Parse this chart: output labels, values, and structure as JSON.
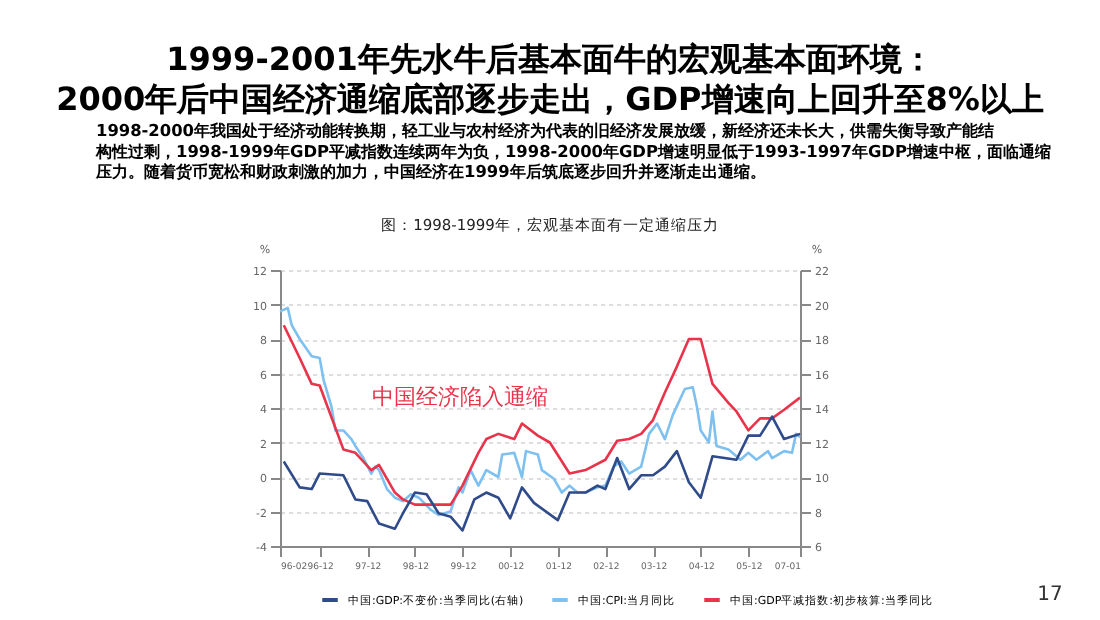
{
  "chart_data": {
    "type": "line",
    "title": "1999-2001年先水牛后基本面牛的宏观基本面环境：\n2000年后中国经济通缩底部逐步走出，GDP增速向上回升至8%以上",
    "subtitle": "1998-2000年我国处于经济动能转换期，轻工业与农村经济为代表的旧经济发展放缓，新经济还未长大，供需失衡导致产能结构性过剩，1998-1999年GDP平减指数连续两年为负，1998-2000年GDP增速明显低于1993-1997年GDP增速中枢，面临通缩压力。随着货币宽松和财政刺激的加力，中国经济在1999年后筑底逐步回升并逐渐走出通缩。",
    "annotations": [
      "图：1998-1999年，宏观基本面有一定通缩压力",
      "中国经济陷入通缩",
      "17"
    ],
    "ylabel": "%",
    "y2label": "%",
    "xlim": [
      "1996-02",
      "2007-01"
    ],
    "xticks": [
      {
        "value": "1996-02",
        "label": "96-02"
      },
      {
        "value": "1996-12",
        "label": "96-12"
      },
      {
        "value": "1997-12",
        "label": "97-12"
      },
      {
        "value": "1998-12",
        "label": "98-12"
      },
      {
        "value": "1999-12",
        "label": "99-12"
      },
      {
        "value": "2000-12",
        "label": "00-12"
      },
      {
        "value": "2001-12",
        "label": "01-12"
      },
      {
        "value": "2002-12",
        "label": "02-12"
      },
      {
        "value": "2003-12",
        "label": "03-12"
      },
      {
        "value": "2004-12",
        "label": "04-12"
      },
      {
        "value": "2005-12",
        "label": "05-12"
      },
      {
        "value": "2007-01",
        "label": "07-01"
      }
    ],
    "ylim": [
      -4,
      12
    ],
    "yticks": [
      -4,
      -2,
      0,
      2,
      4,
      6,
      8,
      10,
      12
    ],
    "y2lim": [
      6,
      22
    ],
    "y2ticks": [
      6,
      8,
      10,
      12,
      14,
      16,
      18,
      20,
      22
    ],
    "grid": "y",
    "legend": "bottom",
    "marker": "none",
    "line_style": "solid",
    "series": [
      {
        "name": "中国:GDP:不变价:当季同比(右轴)",
        "color": "#2f4b8a",
        "axis": "y2",
        "x": [
          "1996-03",
          "1996-07",
          "1996-10",
          "1996-12",
          "1997-06",
          "1997-09",
          "1997-12",
          "1998-03",
          "1998-07",
          "1998-09",
          "1998-12",
          "1999-03",
          "1999-06",
          "1999-09",
          "1999-12",
          "2000-03",
          "2000-06",
          "2000-09",
          "2000-12",
          "2001-03",
          "2001-06",
          "2001-12",
          "2002-03",
          "2002-07",
          "2002-10",
          "2002-12",
          "2003-03",
          "2003-06",
          "2003-09",
          "2003-12",
          "2004-03",
          "2004-06",
          "2004-09",
          "2004-12",
          "2005-03",
          "2005-09",
          "2005-12",
          "2006-03",
          "2006-06",
          "2006-09",
          "2007-01"
        ],
        "values": [
          10.9,
          9.4,
          9.3,
          10.2,
          10.1,
          8.7,
          8.6,
          7.3,
          7.0,
          7.9,
          9.1,
          9.0,
          7.9,
          7.7,
          6.9,
          8.7,
          9.1,
          8.8,
          7.6,
          9.4,
          8.5,
          7.5,
          9.1,
          9.1,
          9.5,
          9.3,
          11.1,
          9.3,
          10.1,
          10.1,
          10.6,
          11.5,
          9.7,
          8.8,
          11.2,
          11.0,
          12.4,
          12.4,
          13.5,
          12.2,
          12.5
        ]
      },
      {
        "name": "中国:CPI:当月同比",
        "color": "#7ec0f0",
        "x": [
          "1996-02",
          "1996-04",
          "1996-05",
          "1996-07",
          "1996-10",
          "1996-12",
          "1997-01",
          "1997-03",
          "1997-04",
          "1997-06",
          "1997-08",
          "1997-09",
          "1997-11",
          "1998-01",
          "1998-02",
          "1998-03",
          "1998-05",
          "1998-07",
          "1998-09",
          "1998-11",
          "1999-01",
          "1999-04",
          "1999-06",
          "1999-09",
          "1999-11",
          "1999-12",
          "2000-02",
          "2000-04",
          "2000-06",
          "2000-09",
          "2000-10",
          "2001-01",
          "2001-03",
          "2001-04",
          "2001-07",
          "2001-08",
          "2001-11",
          "2002-01",
          "2002-03",
          "2002-05",
          "2002-07",
          "2002-10",
          "2002-12",
          "2003-02",
          "2003-04",
          "2003-06",
          "2003-09",
          "2003-11",
          "2004-01",
          "2004-03",
          "2004-05",
          "2004-08",
          "2004-10",
          "2004-11",
          "2004-12",
          "2005-02",
          "2005-03",
          "2005-04",
          "2005-07",
          "2005-08",
          "2005-10",
          "2005-12",
          "2006-02",
          "2006-05",
          "2006-06",
          "2006-09",
          "2006-11",
          "2006-12",
          "2007-01"
        ],
        "values": [
          9.6,
          9.8,
          8.8,
          8.0,
          7.0,
          6.9,
          5.6,
          4.1,
          2.7,
          2.7,
          2.2,
          1.8,
          1.1,
          0.2,
          0.6,
          0.4,
          -0.7,
          -1.2,
          -1.4,
          -1.0,
          -1.2,
          -1.9,
          -2.2,
          -2.0,
          -0.6,
          -0.9,
          0.4,
          -0.5,
          0.4,
          0.0,
          1.3,
          1.4,
          0.0,
          1.5,
          1.3,
          0.4,
          -0.1,
          -0.9,
          -0.5,
          -0.9,
          -0.9,
          -0.6,
          -0.5,
          0.6,
          0.9,
          0.2,
          0.6,
          2.5,
          3.1,
          2.2,
          3.6,
          5.1,
          5.2,
          4.1,
          2.7,
          2.0,
          3.8,
          1.8,
          1.6,
          1.4,
          1.0,
          1.4,
          1.0,
          1.5,
          1.1,
          1.5,
          1.4,
          2.5,
          2.3
        ]
      },
      {
        "name": "中国:GDP平减指数:初步核算:当季同比",
        "color": "#e8334a",
        "x": [
          "1996-03",
          "1996-07",
          "1996-10",
          "1996-12",
          "1997-06",
          "1997-09",
          "1998-01",
          "1998-03",
          "1998-07",
          "1998-09",
          "1998-12",
          "1999-04",
          "1999-09",
          "1999-12",
          "2000-04",
          "2000-06",
          "2000-09",
          "2001-01",
          "2001-03",
          "2001-07",
          "2001-10",
          "2002-03",
          "2002-07",
          "2002-12",
          "2003-03",
          "2003-06",
          "2003-09",
          "2003-12",
          "2004-03",
          "2004-06",
          "2004-09",
          "2004-12",
          "2005-03",
          "2005-07",
          "2005-09",
          "2005-12",
          "2006-03",
          "2006-06",
          "2006-09",
          "2007-01"
        ],
        "values": [
          8.8,
          6.9,
          5.4,
          5.3,
          1.6,
          1.4,
          0.4,
          0.7,
          -0.9,
          -1.3,
          -1.6,
          -1.6,
          -1.6,
          -0.5,
          1.4,
          2.2,
          2.5,
          2.2,
          3.1,
          2.4,
          2.0,
          0.2,
          0.4,
          1.0,
          2.1,
          2.2,
          2.5,
          3.3,
          4.9,
          6.4,
          8.0,
          8.0,
          5.4,
          4.3,
          3.8,
          2.7,
          3.4,
          3.4,
          3.9,
          4.6
        ]
      }
    ]
  }
}
